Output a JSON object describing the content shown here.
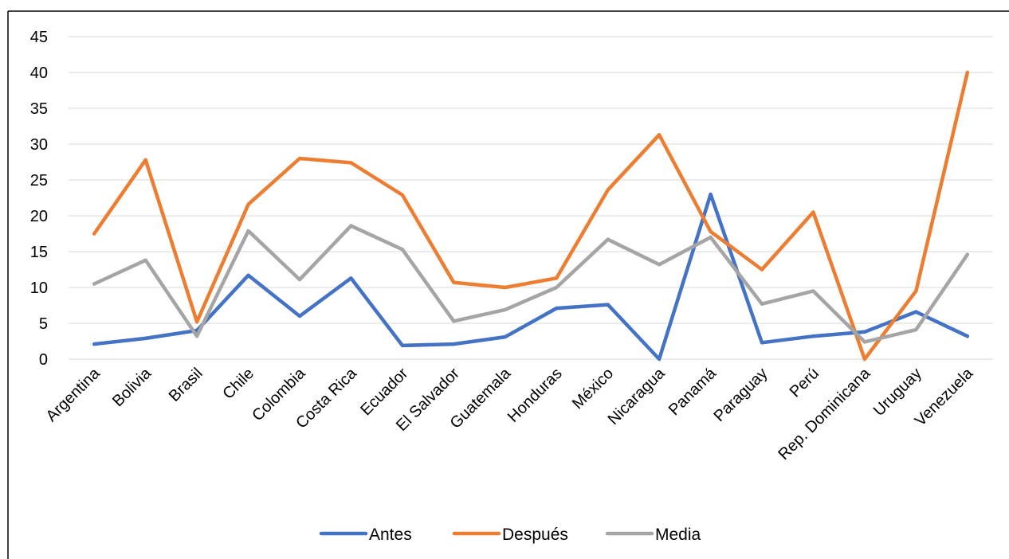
{
  "chart_data": {
    "type": "line",
    "categories": [
      "Argentina",
      "Bolivia",
      "Brasil",
      "Chile",
      "Colombia",
      "Costa Rica",
      "Ecuador",
      "El Salvador",
      "Guatemala",
      "Honduras",
      "México",
      "Nicaragua",
      "Panamá",
      "Paraguay",
      "Perú",
      "Rep. Dominicana",
      "Uruguay",
      "Venezuela"
    ],
    "series": [
      {
        "name": "Antes",
        "color": "#4472c4",
        "values": [
          2.1,
          2.9,
          4.0,
          11.7,
          6.0,
          11.3,
          1.9,
          2.1,
          3.1,
          7.1,
          7.6,
          0.0,
          23.0,
          2.3,
          3.2,
          3.8,
          6.6,
          3.2
        ]
      },
      {
        "name": "Después",
        "color": "#ed7d31",
        "values": [
          17.5,
          27.8,
          5.2,
          21.6,
          28.0,
          27.4,
          22.9,
          10.7,
          10.0,
          11.3,
          23.6,
          31.3,
          17.8,
          12.5,
          20.5,
          0.0,
          9.5,
          40.0
        ]
      },
      {
        "name": "Media",
        "color": "#a5a5a5",
        "values": [
          10.5,
          13.8,
          3.2,
          17.9,
          11.1,
          18.6,
          15.3,
          5.3,
          6.9,
          10.0,
          16.7,
          13.2,
          17.0,
          7.7,
          9.5,
          2.4,
          4.1,
          14.6
        ]
      }
    ],
    "yticks": [
      "0",
      "5",
      "10",
      "15",
      "20",
      "25",
      "30",
      "35",
      "40",
      "45"
    ],
    "ylim": [
      0,
      45
    ],
    "grid": true,
    "legend_position": "bottom"
  }
}
